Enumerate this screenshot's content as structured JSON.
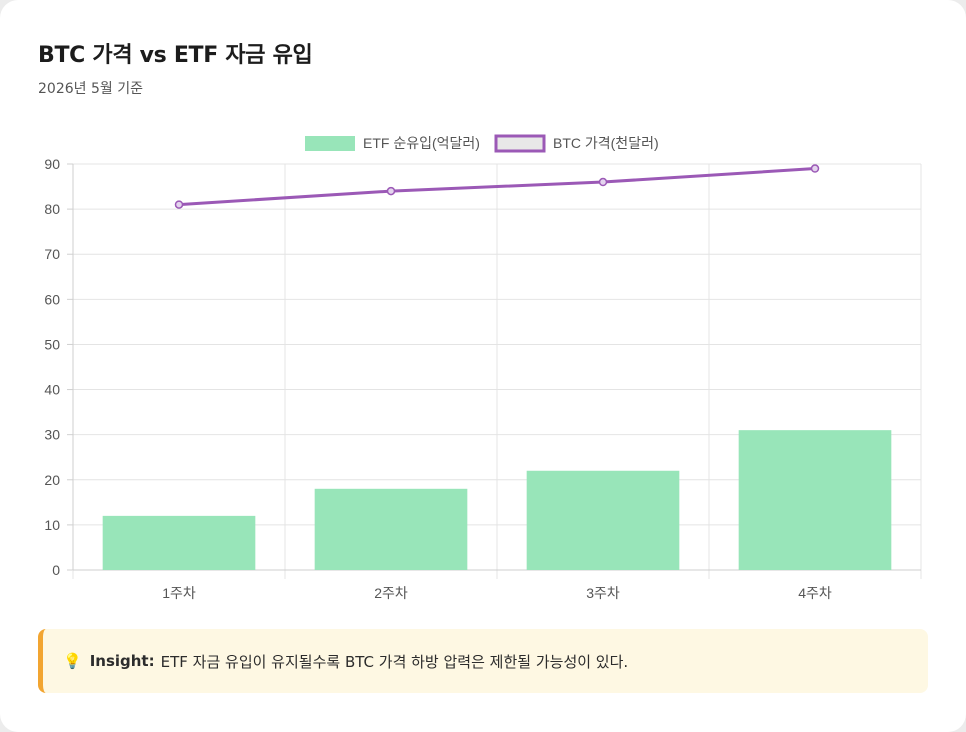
{
  "header": {
    "title": "BTC 가격 vs ETF 자금 유입",
    "subtitle": "2026년 5월 기준"
  },
  "chart_data": {
    "type": "bar",
    "categories": [
      "1주차",
      "2주차",
      "3주차",
      "4주차"
    ],
    "series": [
      {
        "name": "ETF 순유입(억달러)",
        "type": "bar",
        "values": [
          12,
          18,
          22,
          31
        ],
        "color": "#98e5b9"
      },
      {
        "name": "BTC 가격(천달러)",
        "type": "line",
        "values": [
          81,
          84,
          86,
          89
        ],
        "color": "#9b59b6"
      }
    ],
    "ylim": [
      0,
      90
    ],
    "yticks": [
      0,
      10,
      20,
      30,
      40,
      50,
      60,
      70,
      80,
      90
    ],
    "xlabel": "",
    "ylabel": "",
    "grid": true,
    "legend": "top-center"
  },
  "insight": {
    "icon": "lightbulb-icon",
    "label": "Insight:",
    "text": "ETF 자금 유입이 유지될수록 BTC 가격 하방 압력은 제한될 가능성이 있다."
  }
}
